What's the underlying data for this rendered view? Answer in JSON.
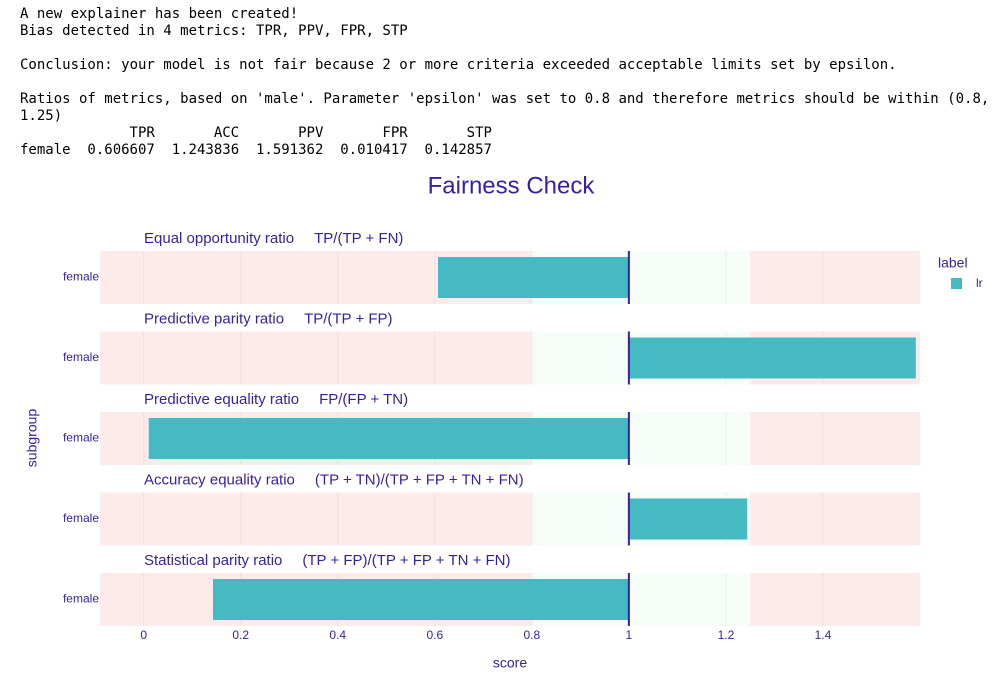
{
  "output": {
    "lines": [
      "A new explainer has been created!",
      "Bias detected in 4 metrics: TPR, PPV, FPR, STP",
      "Conclusion: your model is not fair because 2 or more criteria exceeded acceptable limits set by epsilon.",
      "Ratios of metrics, based on 'male'. Parameter 'epsilon' was set to 0.8 and therefore metrics should be within (0.8, 1.25)"
    ],
    "table": {
      "columns": [
        "TPR",
        "ACC",
        "PPV",
        "FPR",
        "STP"
      ],
      "rows": [
        {
          "label": "female",
          "values": [
            0.606607,
            1.243836,
            1.591362,
            0.010417,
            0.142857
          ]
        }
      ]
    }
  },
  "chart_data": {
    "type": "bar",
    "orientation": "horizontal",
    "title": "Fairness Check",
    "xlabel": "score",
    "ylabel": "subgroup",
    "legend_title": "label",
    "series": [
      {
        "name": "lr",
        "color": "#46bac2"
      }
    ],
    "baseline": 1,
    "fair_range": [
      0.8,
      1.25
    ],
    "panels": [
      {
        "title": "Equal opportunity ratio",
        "formula": "TP/(TP + FN)",
        "categories": [
          "female"
        ],
        "values": [
          0.606607
        ]
      },
      {
        "title": "Predictive parity ratio",
        "formula": "TP/(TP + FP)",
        "categories": [
          "female"
        ],
        "values": [
          1.591362
        ]
      },
      {
        "title": "Predictive equality ratio",
        "formula": "FP/(FP + TN)",
        "categories": [
          "female"
        ],
        "values": [
          0.010417
        ]
      },
      {
        "title": "Accuracy equality ratio",
        "formula": "(TP + TN)/(TP + FP + TN + FN)",
        "categories": [
          "female"
        ],
        "values": [
          1.243836
        ]
      },
      {
        "title": "Statistical parity ratio",
        "formula": "(TP + FP)/(TP + FP + TN + FN)",
        "categories": [
          "female"
        ],
        "values": [
          0.142857
        ]
      }
    ],
    "xlim": [
      -0.09,
      1.6
    ],
    "xticks": [
      0,
      0.2,
      0.4,
      0.6,
      0.8,
      1,
      1.2,
      1.4
    ],
    "grid": true
  }
}
